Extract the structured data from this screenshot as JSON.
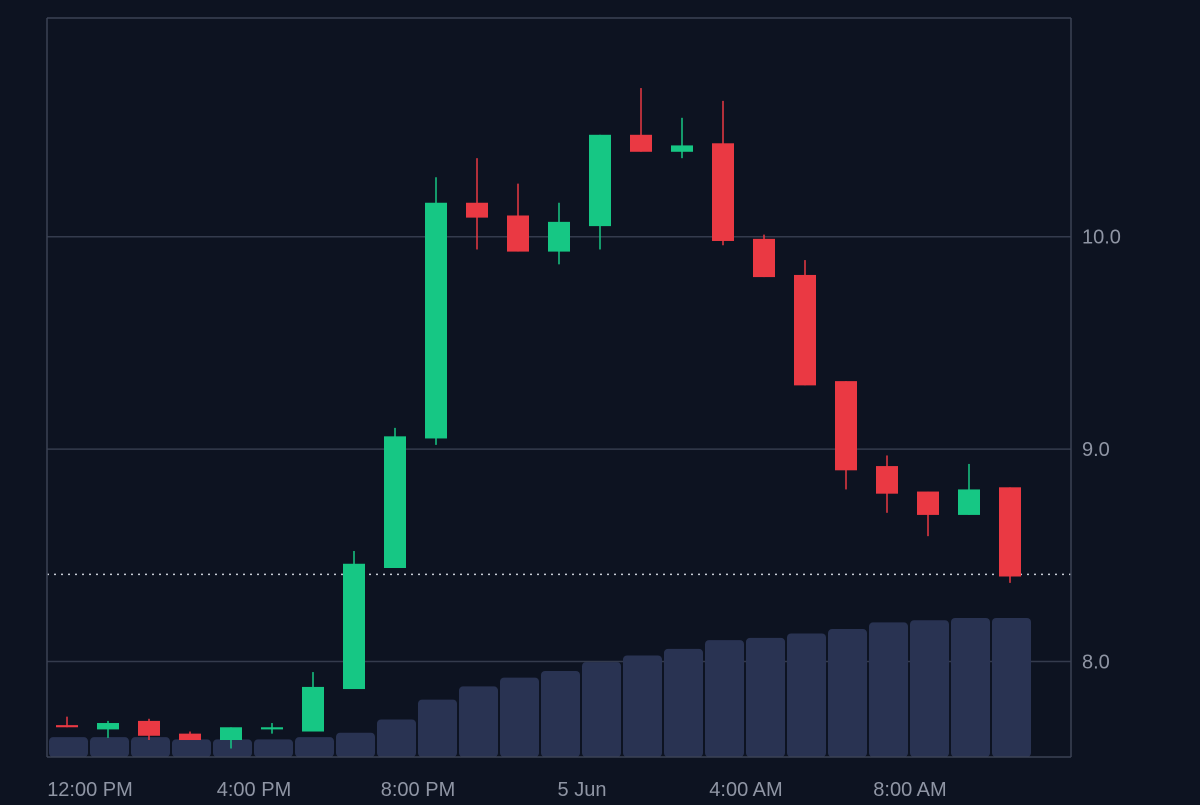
{
  "chart_data": {
    "type": "candlestick",
    "x_tick_labels": [
      "12:00 PM",
      "4:00 PM",
      "8:00 PM",
      "5 Jun",
      "4:00 AM",
      "8:00 AM"
    ],
    "y_tick_labels": [
      "8.0",
      "9.0",
      "10.0"
    ],
    "y_ticks": [
      8.0,
      9.0,
      10.0
    ],
    "ylim": [
      7.55,
      11.03
    ],
    "last_price_line": 8.41,
    "grid": true,
    "candles": [
      {
        "open": 7.7,
        "high": 7.74,
        "low": 7.69,
        "close": 7.69
      },
      {
        "open": 7.68,
        "high": 7.72,
        "low": 7.64,
        "close": 7.71
      },
      {
        "open": 7.72,
        "high": 7.73,
        "low": 7.63,
        "close": 7.65
      },
      {
        "open": 7.66,
        "high": 7.67,
        "low": 7.63,
        "close": 7.63
      },
      {
        "open": 7.63,
        "high": 7.69,
        "low": 7.59,
        "close": 7.69
      },
      {
        "open": 7.68,
        "high": 7.71,
        "low": 7.66,
        "close": 7.69
      },
      {
        "open": 7.67,
        "high": 7.95,
        "low": 7.67,
        "close": 7.88
      },
      {
        "open": 7.87,
        "high": 8.52,
        "low": 7.87,
        "close": 8.46
      },
      {
        "open": 8.44,
        "high": 9.1,
        "low": 8.44,
        "close": 9.06
      },
      {
        "open": 9.05,
        "high": 10.28,
        "low": 9.02,
        "close": 10.16
      },
      {
        "open": 10.16,
        "high": 10.37,
        "low": 9.94,
        "close": 10.09
      },
      {
        "open": 10.1,
        "high": 10.25,
        "low": 9.93,
        "close": 9.93
      },
      {
        "open": 9.93,
        "high": 10.16,
        "low": 9.87,
        "close": 10.07
      },
      {
        "open": 10.05,
        "high": 10.48,
        "low": 9.94,
        "close": 10.48
      },
      {
        "open": 10.48,
        "high": 10.7,
        "low": 10.4,
        "close": 10.4
      },
      {
        "open": 10.4,
        "high": 10.56,
        "low": 10.37,
        "close": 10.43
      },
      {
        "open": 10.44,
        "high": 10.64,
        "low": 9.96,
        "close": 9.98
      },
      {
        "open": 9.99,
        "high": 10.01,
        "low": 9.81,
        "close": 9.81
      },
      {
        "open": 9.82,
        "high": 9.89,
        "low": 9.3,
        "close": 9.3
      },
      {
        "open": 9.32,
        "high": 9.32,
        "low": 8.81,
        "close": 8.9
      },
      {
        "open": 8.92,
        "high": 8.97,
        "low": 8.7,
        "close": 8.79
      },
      {
        "open": 8.8,
        "high": 8.8,
        "low": 8.59,
        "close": 8.69
      },
      {
        "open": 8.69,
        "high": 8.93,
        "low": 8.69,
        "close": 8.81
      },
      {
        "open": 8.82,
        "high": 8.82,
        "low": 8.37,
        "close": 8.4
      }
    ],
    "volume": [
      9,
      9,
      9,
      8,
      8,
      8,
      9,
      11,
      17,
      26,
      32,
      36,
      39,
      43,
      46,
      49,
      53,
      54,
      56,
      58,
      61,
      62,
      63,
      63
    ],
    "volume_max": 63,
    "colors": {
      "background": "#0d1321",
      "up": "#16c784",
      "down": "#ea3943",
      "volume": "#293352",
      "grid": "#343b4d",
      "axis": "#3b4254",
      "tick_label": "#8f95a4",
      "last_price_line": "#c8cdd6"
    }
  }
}
